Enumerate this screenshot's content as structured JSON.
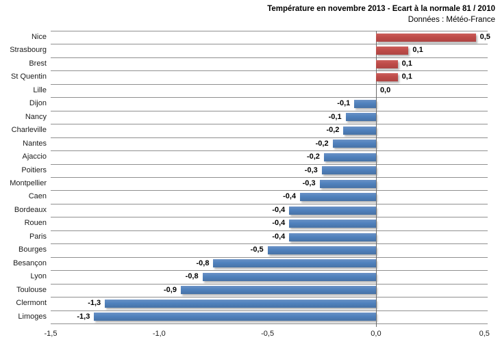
{
  "header": {
    "title": "Température en novembre 2013 - Ecart à la normale 81 / 2010",
    "subtitle": "Données : Météo-France"
  },
  "colors": {
    "positive_bar": "#BE4B48",
    "negative_bar": "#4F81BD",
    "gridline": "#8F8F8F",
    "zero_line": "#6A6A6A",
    "text": "#000000",
    "background": "#FFFFFF"
  },
  "chart_data": {
    "type": "bar",
    "orientation": "horizontal",
    "title": "Température en novembre 2013 - Ecart à la normale 81 / 2010",
    "subtitle": "Données : Météo-France",
    "legend": "none",
    "grid": "horizontal category separator lines only",
    "categories": [
      "Nice",
      "Strasbourg",
      "Brest",
      "St Quentin",
      "Lille",
      "Dijon",
      "Nancy",
      "Charleville",
      "Nantes",
      "Ajaccio",
      "Poitiers",
      "Montpellier",
      "Caen",
      "Bordeaux",
      "Rouen",
      "Paris",
      "Bourges",
      "Besançon",
      "Lyon",
      "Toulouse",
      "Clermont",
      "Limoges"
    ],
    "values": [
      0.5,
      0.1,
      0.1,
      0.1,
      0.0,
      -0.1,
      -0.1,
      -0.2,
      -0.2,
      -0.2,
      -0.3,
      -0.3,
      -0.4,
      -0.4,
      -0.4,
      -0.4,
      -0.5,
      -0.8,
      -0.8,
      -0.9,
      -1.3,
      -1.3
    ],
    "value_labels": [
      "0,5",
      "0,1",
      "0,1",
      "0,1",
      "0,0",
      "-0,1",
      "-0,1",
      "-0,2",
      "-0,2",
      "-0,2",
      "-0,3",
      "-0,3",
      "-0,4",
      "-0,4",
      "-0,4",
      "-0,4",
      "-0,5",
      "-0,8",
      "-0,8",
      "-0,9",
      "-1,3",
      "-1,3"
    ],
    "values_precise_from_bar_lengths": [
      0.46,
      0.15,
      0.1,
      0.1,
      0.0,
      -0.1,
      -0.14,
      -0.15,
      -0.2,
      -0.24,
      -0.25,
      -0.26,
      -0.35,
      -0.4,
      -0.4,
      -0.4,
      -0.5,
      -0.75,
      -0.8,
      -0.9,
      -1.25,
      -1.3
    ],
    "xlim": [
      -1.5,
      0.5
    ],
    "xticks": {
      "values": [
        -1.5,
        -1.0,
        -0.5,
        0.0,
        0.5
      ],
      "labels": [
        "-1,5",
        "-1,0",
        "-0,5",
        "0,0",
        "0,5"
      ]
    }
  }
}
